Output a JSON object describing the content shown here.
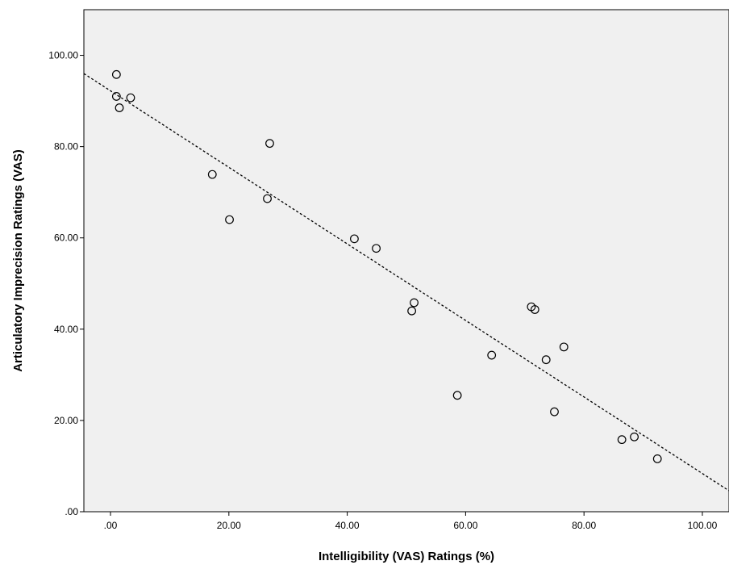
{
  "chart_data": {
    "type": "scatter",
    "title": "",
    "xlabel": "Intelligibility (VAS) Ratings (%)",
    "ylabel": "Articulatory Imprecision Ratings (VAS)",
    "xlim": [
      -4.5,
      104.5
    ],
    "ylim": [
      0,
      110
    ],
    "x_ticks": [
      0,
      20,
      40,
      60,
      80,
      100
    ],
    "x_tick_labels": [
      ".00",
      "20.00",
      "40.00",
      "60.00",
      "80.00",
      "100.00"
    ],
    "y_ticks": [
      0,
      20,
      40,
      60,
      80,
      100
    ],
    "y_tick_labels": [
      ".00",
      "20.00",
      "40.00",
      "60.00",
      "80.00",
      "100.00"
    ],
    "grid": false,
    "background_color": "#f0f0f0",
    "marker_color": "#000000",
    "points": [
      {
        "x": 1.0,
        "y": 95.8
      },
      {
        "x": 1.0,
        "y": 91.0
      },
      {
        "x": 1.5,
        "y": 88.5
      },
      {
        "x": 3.4,
        "y": 90.7
      },
      {
        "x": 17.2,
        "y": 73.9
      },
      {
        "x": 20.1,
        "y": 64.0
      },
      {
        "x": 26.5,
        "y": 68.6
      },
      {
        "x": 26.9,
        "y": 80.7
      },
      {
        "x": 41.2,
        "y": 59.8
      },
      {
        "x": 44.9,
        "y": 57.7
      },
      {
        "x": 50.9,
        "y": 44.0
      },
      {
        "x": 51.3,
        "y": 45.8
      },
      {
        "x": 58.6,
        "y": 25.5
      },
      {
        "x": 64.4,
        "y": 34.3
      },
      {
        "x": 71.1,
        "y": 44.9
      },
      {
        "x": 71.7,
        "y": 44.3
      },
      {
        "x": 73.6,
        "y": 33.3
      },
      {
        "x": 75.0,
        "y": 21.9
      },
      {
        "x": 76.6,
        "y": 36.1
      },
      {
        "x": 86.4,
        "y": 15.8
      },
      {
        "x": 88.5,
        "y": 16.4
      },
      {
        "x": 92.4,
        "y": 11.6
      }
    ],
    "fit_line": {
      "style": "dotted",
      "start": {
        "x": -4.5,
        "y": 96.0
      },
      "end": {
        "x": 104.5,
        "y": 4.6
      }
    }
  }
}
